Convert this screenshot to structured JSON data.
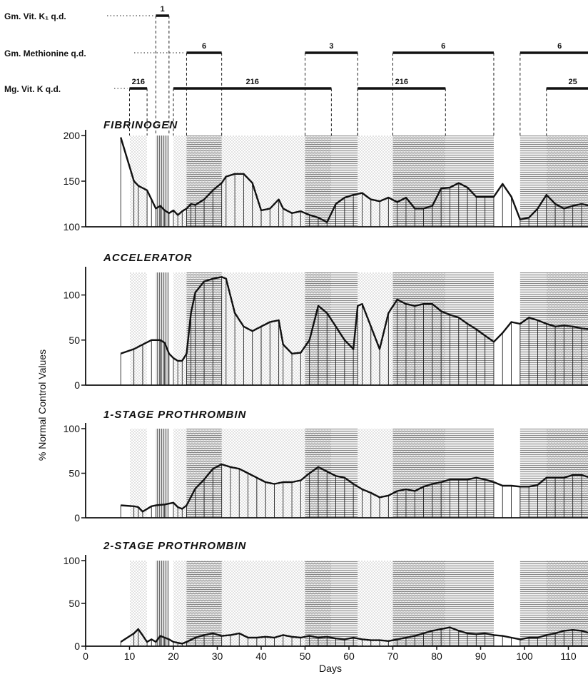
{
  "chart_data": {
    "type": "area",
    "xlabel": "Days",
    "ylabel": "% Normal Control Values",
    "x_ticks": [
      0,
      10,
      20,
      30,
      40,
      50,
      60,
      70,
      80,
      90,
      100,
      110
    ],
    "xlim": [
      0,
      117
    ],
    "treatments": [
      {
        "label": "Gm. Vit. K₁ q.d.",
        "bars": [
          {
            "start": 16,
            "end": 19,
            "dose": "1"
          }
        ]
      },
      {
        "label": "Gm. Methionine q.d.",
        "bars": [
          {
            "start": 23,
            "end": 31,
            "dose": "6"
          },
          {
            "start": 50,
            "end": 62,
            "dose": "3"
          },
          {
            "start": 70,
            "end": 93,
            "dose": "6"
          },
          {
            "start": 99,
            "end": 117,
            "dose": "6"
          }
        ]
      },
      {
        "label": "Mg. Vit. K q.d.",
        "bars": [
          {
            "start": 10,
            "end": 14,
            "dose": "216"
          },
          {
            "start": 20,
            "end": 56,
            "dose": "216"
          },
          {
            "start": 62,
            "end": 82,
            "dose": "216"
          },
          {
            "start": 105,
            "end": 117,
            "dose": "25"
          }
        ]
      }
    ],
    "panels": [
      {
        "title": "FIBRINOGEN",
        "ylim": [
          100,
          200
        ],
        "y_ticks": [
          100,
          150,
          200
        ],
        "x": [
          8,
          11,
          12,
          14,
          15,
          16,
          17,
          18,
          19,
          20,
          21,
          22,
          23,
          24,
          25,
          27,
          29,
          31,
          32,
          34,
          36,
          38,
          40,
          42,
          44,
          45,
          47,
          49,
          51,
          53,
          55,
          57,
          59,
          61,
          63,
          65,
          67,
          69,
          71,
          73,
          75,
          77,
          79,
          81,
          83,
          85,
          87,
          89,
          91,
          93,
          95,
          97,
          99,
          101,
          103,
          105,
          107,
          109,
          111,
          113,
          115,
          117
        ],
        "y": [
          198,
          150,
          145,
          140,
          130,
          120,
          123,
          118,
          115,
          118,
          113,
          117,
          120,
          125,
          124,
          130,
          140,
          148,
          155,
          158,
          158,
          148,
          118,
          120,
          130,
          120,
          115,
          117,
          113,
          110,
          105,
          125,
          132,
          135,
          137,
          130,
          128,
          132,
          127,
          132,
          120,
          120,
          123,
          142,
          143,
          148,
          143,
          133,
          133,
          133,
          147,
          133,
          108,
          110,
          120,
          135,
          125,
          120,
          123,
          125,
          123,
          125
        ]
      },
      {
        "title": "ACCELERATOR",
        "ylim": [
          0,
          125
        ],
        "y_ticks": [
          0,
          50,
          100
        ],
        "x": [
          8,
          11,
          13,
          15,
          17,
          18,
          19,
          20,
          21,
          22,
          23,
          24,
          25,
          27,
          29,
          31,
          32,
          34,
          36,
          38,
          40,
          42,
          44,
          45,
          47,
          49,
          51,
          53,
          55,
          57,
          59,
          61,
          62,
          63,
          65,
          67,
          69,
          71,
          73,
          75,
          77,
          79,
          81,
          83,
          85,
          87,
          89,
          91,
          93,
          95,
          97,
          99,
          101,
          103,
          105,
          107,
          109,
          111,
          113,
          115,
          117
        ],
        "y": [
          35,
          40,
          45,
          50,
          50,
          47,
          35,
          30,
          27,
          27,
          35,
          80,
          103,
          115,
          118,
          120,
          118,
          80,
          65,
          60,
          65,
          70,
          72,
          45,
          35,
          36,
          50,
          88,
          80,
          65,
          50,
          40,
          88,
          90,
          65,
          40,
          80,
          95,
          90,
          88,
          90,
          90,
          82,
          78,
          75,
          68,
          62,
          55,
          48,
          58,
          70,
          68,
          75,
          72,
          68,
          65,
          66,
          65,
          63,
          62,
          60
        ]
      },
      {
        "title": "1-STAGE PROTHROMBIN",
        "ylim": [
          0,
          100
        ],
        "y_ticks": [
          0,
          50,
          100
        ],
        "x": [
          8,
          11,
          12,
          13,
          15,
          16,
          18,
          20,
          21,
          22,
          23,
          25,
          27,
          29,
          31,
          33,
          35,
          37,
          39,
          41,
          43,
          45,
          47,
          49,
          51,
          53,
          55,
          57,
          59,
          61,
          63,
          65,
          67,
          69,
          71,
          73,
          75,
          77,
          79,
          81,
          83,
          85,
          87,
          89,
          91,
          93,
          95,
          97,
          99,
          101,
          103,
          105,
          107,
          109,
          111,
          113,
          115,
          117
        ],
        "y": [
          14,
          13,
          12,
          7,
          13,
          14,
          15,
          17,
          12,
          10,
          14,
          33,
          43,
          55,
          60,
          57,
          55,
          50,
          45,
          40,
          38,
          40,
          40,
          42,
          50,
          57,
          52,
          47,
          45,
          38,
          32,
          28,
          23,
          25,
          30,
          32,
          30,
          35,
          38,
          40,
          43,
          43,
          43,
          45,
          43,
          40,
          36,
          36,
          35,
          35,
          37,
          45,
          45,
          45,
          48,
          48,
          45,
          45
        ]
      },
      {
        "title": "2-STAGE PROTHROMBIN",
        "ylim": [
          0,
          100
        ],
        "y_ticks": [
          0,
          50,
          100
        ],
        "x": [
          8,
          11,
          12,
          14,
          15,
          16,
          17,
          18,
          19,
          20,
          21,
          22,
          23,
          25,
          27,
          29,
          31,
          33,
          35,
          37,
          39,
          41,
          43,
          45,
          47,
          49,
          51,
          53,
          55,
          57,
          59,
          61,
          63,
          65,
          67,
          69,
          71,
          73,
          75,
          77,
          79,
          81,
          83,
          85,
          87,
          89,
          91,
          93,
          95,
          97,
          99,
          101,
          103,
          105,
          107,
          109,
          111,
          113,
          115,
          117
        ],
        "y": [
          5,
          15,
          20,
          5,
          8,
          5,
          12,
          10,
          8,
          5,
          4,
          3,
          5,
          10,
          13,
          15,
          12,
          13,
          15,
          10,
          10,
          11,
          10,
          13,
          11,
          10,
          12,
          10,
          11,
          9,
          8,
          10,
          8,
          7,
          7,
          6,
          8,
          10,
          12,
          15,
          18,
          20,
          22,
          18,
          15,
          14,
          15,
          13,
          12,
          10,
          8,
          10,
          10,
          13,
          15,
          18,
          19,
          18,
          15,
          13
        ]
      }
    ]
  }
}
